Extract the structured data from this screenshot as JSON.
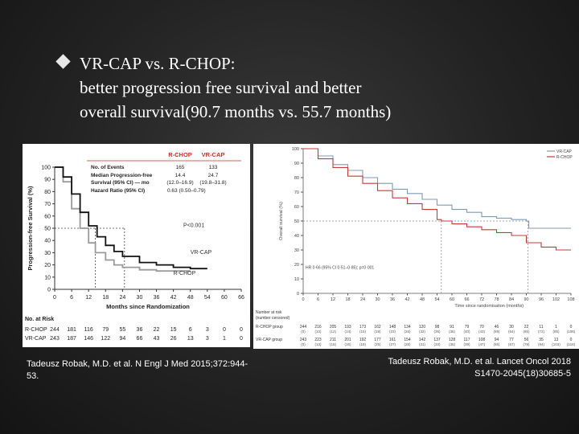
{
  "slide": {
    "headline_lines": [
      "VR-CAP vs. R-CHOP:",
      "better progression free survival and better",
      "overall survival(90.7 months vs. 55.7 months)"
    ],
    "bullet_icon": "diamond-bullet-icon"
  },
  "captions": {
    "left": "Tadeusz Robak, M.D. et al. N Engl J Med 2015;372:944-53.",
    "right_lines": [
      "Tadeusz Robak, M.D. et al. Lancet Oncol 2018",
      "S1470-2045(18)30685-5"
    ]
  },
  "colors": {
    "vrcap": "#111111",
    "rchop": "#888888",
    "os_vrcap": "#7f9ab5",
    "os_rchop": "#c83a3a"
  },
  "chart_data": [
    {
      "type": "line",
      "title": "Progression-free Survival",
      "ylabel": "Progression-free Survival (%)",
      "xlabel": "Months since Randomization",
      "xlim": [
        0,
        66
      ],
      "ylim": [
        0,
        100
      ],
      "x_ticks": [
        "0",
        "6",
        "12",
        "18",
        "24",
        "30",
        "36",
        "42",
        "48",
        "54",
        "60",
        "66"
      ],
      "y_ticks": [
        "0",
        "10",
        "20",
        "30",
        "40",
        "50",
        "60",
        "70",
        "80",
        "90",
        "100"
      ],
      "series": [
        {
          "name": "VR-CAP",
          "x": [
            0,
            3,
            6,
            9,
            12,
            15,
            18,
            21,
            24,
            30,
            36,
            42,
            48,
            54
          ],
          "values": [
            100,
            92,
            78,
            63,
            52,
            43,
            36,
            31,
            27,
            22,
            20,
            18,
            17,
            17
          ]
        },
        {
          "name": "R-CHOP",
          "x": [
            0,
            3,
            6,
            9,
            12,
            14.4,
            18,
            21,
            24,
            30,
            36,
            42,
            48
          ],
          "values": [
            100,
            88,
            66,
            50,
            38,
            30,
            24,
            20,
            18,
            16,
            15,
            15,
            15
          ]
        }
      ],
      "series_labels": [
        "VR-CAP",
        "R-CHOP"
      ],
      "median_line": {
        "y": 50,
        "x_values": [
          14.4,
          24.7
        ],
        "label": "P<0.001"
      },
      "table": {
        "headers": [
          "",
          "R-CHOP",
          "VR-CAP"
        ],
        "rows": [
          [
            "No. of Events",
            "165",
            "133"
          ],
          [
            "Median Progression-free",
            "14.4",
            "24.7"
          ],
          [
            "Survival (95% CI) — mo",
            "(12.0–16.9)",
            "(19.8–31.8)"
          ],
          [
            "Hazard Ratio (95% CI)",
            "0.63 (0.50–0.79)",
            ""
          ]
        ]
      },
      "at_risk": {
        "title": "No. at Risk",
        "groups": [
          {
            "name": "R-CHOP",
            "values": [
              "244",
              "181",
              "116",
              "79",
              "55",
              "36",
              "22",
              "15",
              "6",
              "3",
              "0",
              "0"
            ]
          },
          {
            "name": "VR-CAP",
            "values": [
              "243",
              "187",
              "146",
              "122",
              "94",
              "66",
              "43",
              "26",
              "13",
              "3",
              "1",
              "0"
            ]
          }
        ]
      }
    },
    {
      "type": "line",
      "title": "Overall Survival",
      "ylabel": "Overall survival (%)",
      "xlabel": "Time since randomisation (months)",
      "xlim": [
        0,
        108
      ],
      "ylim": [
        0,
        100
      ],
      "x_ticks": [
        "0",
        "6",
        "12",
        "18",
        "24",
        "30",
        "36",
        "42",
        "48",
        "54",
        "60",
        "66",
        "72",
        "78",
        "84",
        "90",
        "96",
        "102",
        "108"
      ],
      "y_ticks": [
        "0",
        "10",
        "20",
        "30",
        "40",
        "50",
        "60",
        "70",
        "80",
        "90",
        "100"
      ],
      "legend": [
        "VR-CAP",
        "R-CHOP"
      ],
      "legend_position": "top-right",
      "hazard_text": "HR 0·66 (95% CI 0·51–0·85); p=0·001",
      "series": [
        {
          "name": "VR-CAP",
          "x": [
            0,
            6,
            12,
            18,
            24,
            30,
            36,
            42,
            48,
            54,
            60,
            66,
            72,
            78,
            84,
            90,
            91,
            96,
            102,
            108
          ],
          "values": [
            100,
            95,
            89,
            85,
            80,
            76,
            72,
            69,
            65,
            61,
            58,
            56,
            53,
            52,
            51,
            50,
            45,
            45,
            45,
            45
          ]
        },
        {
          "name": "R-CHOP",
          "x": [
            0,
            6,
            12,
            18,
            24,
            30,
            36,
            42,
            48,
            54,
            55.7,
            60,
            66,
            72,
            78,
            84,
            90,
            96,
            102,
            108
          ],
          "values": [
            100,
            93,
            87,
            81,
            76,
            71,
            66,
            62,
            58,
            51,
            50,
            48,
            46,
            44,
            42,
            40,
            35,
            32,
            30,
            30
          ]
        }
      ],
      "median_values": [
        55.7,
        90.7
      ],
      "at_risk": {
        "title": "Number at risk",
        "subtitle": "(number censored)",
        "groups": [
          {
            "name": "R-CHOP group",
            "values": [
              "244",
              "216",
              "205",
              "193",
              "173",
              "162",
              "148",
              "134",
              "120",
              "98",
              "91",
              "79",
              "70",
              "46",
              "30",
              "22",
              "11",
              "1",
              "0"
            ],
            "censored": [
              "(0)",
              "(10)",
              "(12)",
              "(14)",
              "(15)",
              "(19)",
              "(23)",
              "(26)",
              "(32)",
              "(35)",
              "(36)",
              "(40)",
              "(43)",
              "(59)",
              "(64)",
              "(65)",
              "(72)",
              "(85)",
              "(106)"
            ]
          },
          {
            "name": "VR-CAP group",
            "values": [
              "243",
              "223",
              "211",
              "201",
              "192",
              "177",
              "161",
              "154",
              "142",
              "137",
              "128",
              "117",
              "108",
              "94",
              "77",
              "56",
              "35",
              "13",
              "0"
            ],
            "censored": [
              "(0)",
              "(13)",
              "(15)",
              "(16)",
              "(18)",
              "(25)",
              "(27)",
              "(28)",
              "(31)",
              "(33)",
              "(35)",
              "(39)",
              "(47)",
              "(55)",
              "(67)",
              "(79)",
              "(94)",
              "(103)",
              "(116)"
            ]
          }
        ]
      }
    }
  ]
}
